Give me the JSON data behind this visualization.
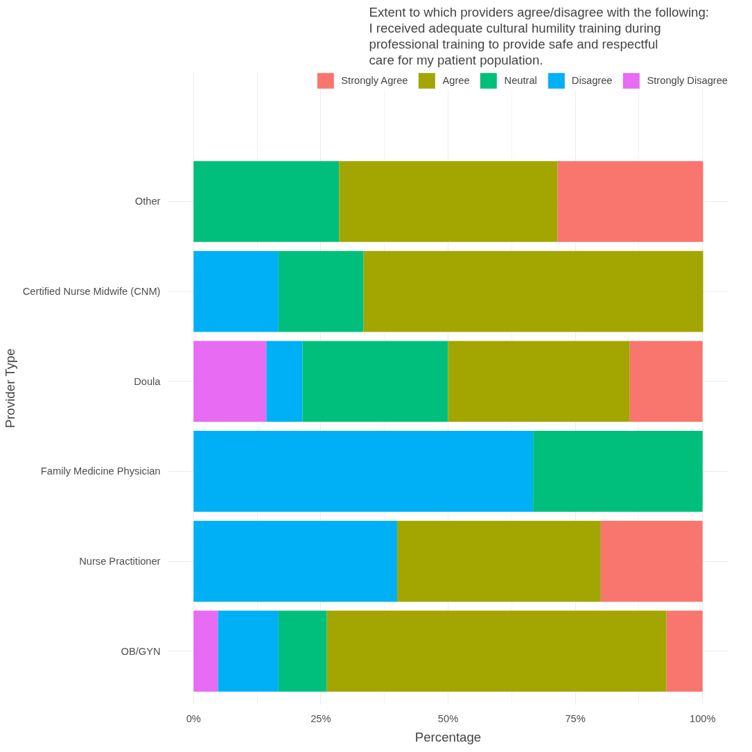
{
  "chart_data": {
    "type": "bar",
    "orientation": "horizontal",
    "stacked": true,
    "title": "Extent to which providers agree/disagree with the following:\n I received adequate cultural humility training during\n professional training to provide safe and respectful\n care for my patient population.",
    "xlabel": "Percentage",
    "ylabel": "Provider Type",
    "categories": [
      "Other",
      "Certified Nurse Midwife (CNM)",
      "Doula",
      "Family Medicine Physician",
      "Nurse Practitioner",
      "OB/GYN"
    ],
    "series": [
      {
        "name": "Strongly Disagree",
        "color": "#e76bf3",
        "values": [
          null,
          null,
          14.3,
          null,
          null,
          4.8
        ]
      },
      {
        "name": "Disagree",
        "color": "#00b0f6",
        "values": [
          null,
          16.7,
          7.1,
          66.7,
          40,
          11.9
        ]
      },
      {
        "name": "Neutral",
        "color": "#00bf7d",
        "values": [
          28.6,
          16.7,
          28.6,
          33.3,
          null,
          9.5
        ]
      },
      {
        "name": "Agree",
        "color": "#a3a500",
        "values": [
          42.9,
          66.7,
          35.7,
          null,
          40,
          66.7
        ]
      },
      {
        "name": "Strongly Agree",
        "color": "#f8766d",
        "values": [
          28.6,
          null,
          14.3,
          null,
          20,
          7.1
        ]
      }
    ],
    "xlim": [
      -5,
      105
    ],
    "xticks": [
      {
        "value": 0,
        "label": "0%"
      },
      {
        "value": 25,
        "label": "25%"
      },
      {
        "value": 50,
        "label": "50%"
      },
      {
        "value": 75,
        "label": "75%"
      },
      {
        "value": 100,
        "label": "100%"
      }
    ],
    "grid": true,
    "legend": "top"
  }
}
